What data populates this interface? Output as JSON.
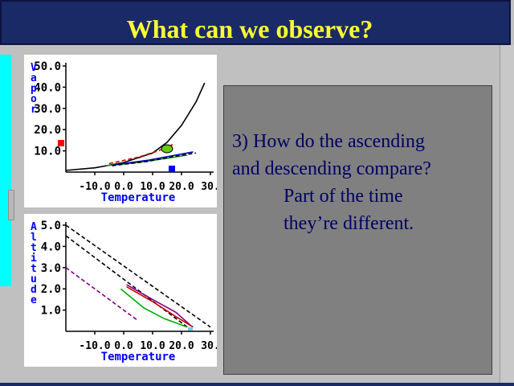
{
  "title": "What can we observe?",
  "question": {
    "lines": [
      "3) How do the ascending",
      "and descending compare?",
      "Part of the time",
      "they’re different."
    ]
  },
  "colors": {
    "title_bg": "#1a2a66",
    "title_text": "#ffff33",
    "question_bg": "#808080",
    "question_text": "#000066",
    "axis_label": "#0000ff"
  },
  "chart_data": [
    {
      "type": "line",
      "title": "",
      "xlabel": "Temperature",
      "ylabel": "Vapor",
      "x_tick_labels": [
        "-10.0",
        "0.0",
        "10.0",
        "20.0",
        "30."
      ],
      "y_tick_labels": [
        "50.0",
        "40.0",
        "30.0",
        "20.0",
        "10.0"
      ],
      "xlim": [
        -20,
        30
      ],
      "ylim": [
        0,
        50
      ],
      "series": [
        {
          "color": "#000000",
          "style": "solid",
          "x": [
            -20,
            -10,
            0,
            10,
            15,
            20,
            25,
            28
          ],
          "y": [
            0.8,
            2.0,
            4.5,
            9.0,
            14.0,
            22.0,
            33.0,
            42.0
          ]
        },
        {
          "color": "#cc0000",
          "style": "dashed",
          "x": [
            -5,
            5,
            12,
            17
          ],
          "y": [
            4.0,
            7.0,
            10.0,
            13.0
          ]
        },
        {
          "color": "#00aa00",
          "style": "solid",
          "x": [
            -6,
            5,
            15,
            22
          ],
          "y": [
            3.0,
            4.5,
            6.5,
            8.0
          ]
        },
        {
          "color": "#0000cc",
          "style": "solid",
          "x": [
            -3,
            8,
            18,
            24
          ],
          "y": [
            3.5,
            5.5,
            8.0,
            9.5
          ]
        },
        {
          "color": "#000000",
          "style": "dashed",
          "x": [
            -4,
            8,
            18,
            25
          ],
          "y": [
            3.0,
            5.0,
            7.5,
            9.0
          ]
        }
      ]
    },
    {
      "type": "line",
      "title": "",
      "xlabel": "Temperature",
      "ylabel": "Altitude",
      "x_tick_labels": [
        "-10.0",
        "0.0",
        "10.0",
        "20.0",
        "30."
      ],
      "y_tick_labels": [
        "5.0",
        "4.0",
        "3.0",
        "2.0",
        "1.0"
      ],
      "xlim": [
        -20,
        30
      ],
      "ylim": [
        0,
        5
      ],
      "series": [
        {
          "color": "#000000",
          "style": "dashed",
          "x": [
            -20,
            30
          ],
          "y": [
            5.0,
            0.2
          ]
        },
        {
          "color": "#000000",
          "style": "dashed",
          "x": [
            -20,
            22
          ],
          "y": [
            4.5,
            0.2
          ]
        },
        {
          "color": "#800080",
          "style": "dashed",
          "x": [
            -20,
            5
          ],
          "y": [
            3.0,
            0.5
          ]
        },
        {
          "color": "#800080",
          "style": "solid",
          "x": [
            1,
            10,
            18,
            23
          ],
          "y": [
            2.2,
            1.5,
            0.9,
            0.3
          ]
        },
        {
          "color": "#cc0000",
          "style": "solid",
          "x": [
            1,
            10,
            18,
            24
          ],
          "y": [
            2.1,
            1.4,
            0.7,
            0.2
          ]
        },
        {
          "color": "#00aa00",
          "style": "solid",
          "x": [
            -1,
            7,
            14,
            22
          ],
          "y": [
            2.0,
            1.1,
            0.6,
            0.2
          ]
        }
      ]
    }
  ]
}
